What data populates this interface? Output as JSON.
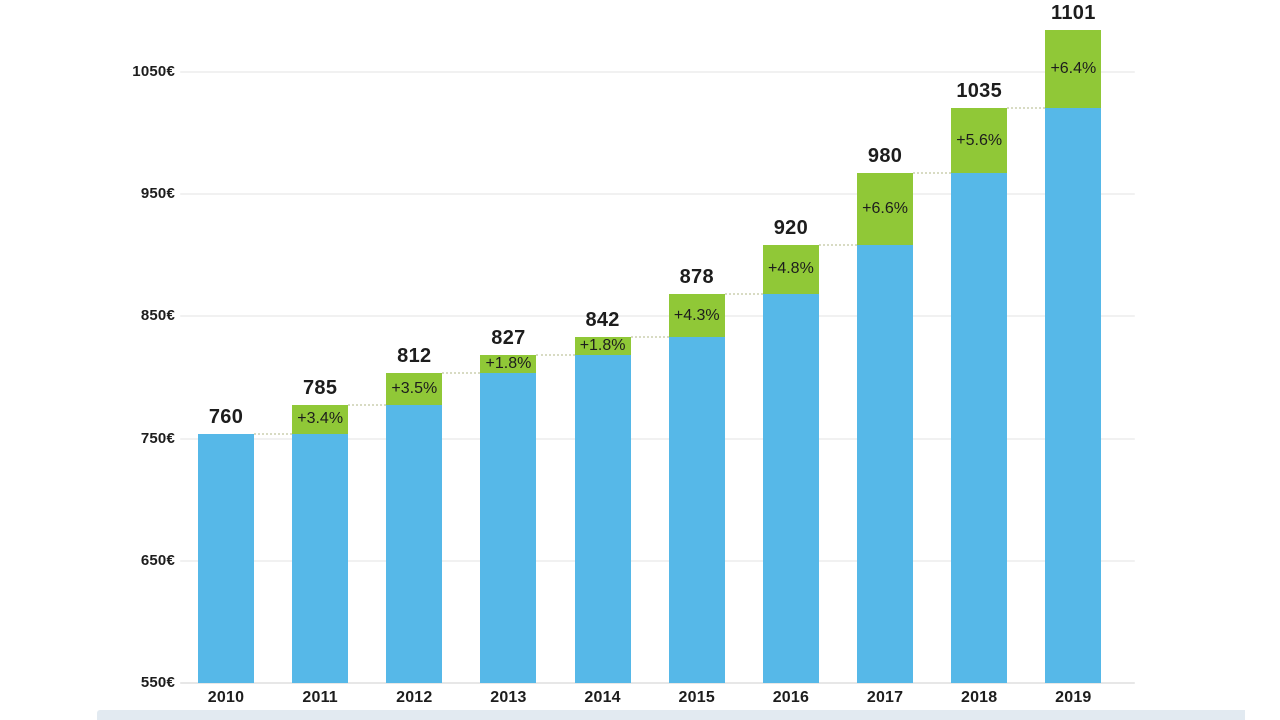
{
  "chart_data": {
    "type": "bar",
    "subtype": "stacked-increase",
    "title": "",
    "xlabel": "",
    "ylabel": "",
    "categories": [
      "2010",
      "2011",
      "2012",
      "2013",
      "2014",
      "2015",
      "2016",
      "2017",
      "2018",
      "2019"
    ],
    "values": [
      760,
      785,
      812,
      827,
      842,
      878,
      920,
      980,
      1035,
      1101
    ],
    "value_labels": [
      "760",
      "785",
      "812",
      "827",
      "842",
      "878",
      "920",
      "980",
      "1035",
      "1101"
    ],
    "increase_labels": [
      "",
      "+3.4%",
      "+3.5%",
      "+1.8%",
      "+1.8%",
      "+4.3%",
      "+4.8%",
      "+6.6%",
      "+5.6%",
      "+6.4%"
    ],
    "series": [
      {
        "name": "previous-year-level",
        "values": [
          760,
          760,
          785,
          812,
          827,
          842,
          878,
          920,
          980,
          1035
        ]
      },
      {
        "name": "year-over-year-increase",
        "values": [
          0,
          25,
          27,
          15,
          15,
          36,
          42,
          60,
          55,
          66
        ]
      }
    ],
    "y_ticks": [
      "550€",
      "650€",
      "750€",
      "850€",
      "950€",
      "1050€"
    ],
    "y_tick_values": [
      550,
      650,
      750,
      850,
      950,
      1050
    ],
    "ylim": [
      550,
      1160
    ],
    "currency": "€",
    "grid": "horizontal",
    "legend": "none",
    "colors": {
      "bar": "#56b8e8",
      "increase": "#90c837",
      "text": "#1d1d1d",
      "gridline": "#f1f1f1",
      "baseline": "#e7e7e7",
      "connector": "#d8dbc3"
    }
  },
  "decor": {
    "bottom_strip_color": "#e2eaf1"
  }
}
